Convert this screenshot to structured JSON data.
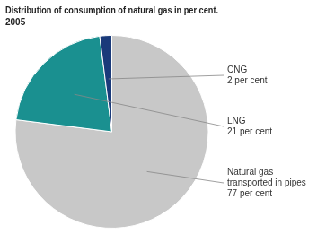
{
  "chart_data": {
    "type": "pie",
    "title": "Distribution of consumption of natural gas in per cent.",
    "subtitle": "2005",
    "categories": [
      "Natural gas\ntransported in pipes",
      "LNG",
      "CNG"
    ],
    "values": [
      77,
      21,
      2
    ],
    "value_labels": [
      "77 per cent",
      "21 per cent",
      "2 per cent"
    ],
    "colors": [
      "#c8c8c8",
      "#1a9090",
      "#1a3a7a"
    ],
    "data_labels": true
  }
}
